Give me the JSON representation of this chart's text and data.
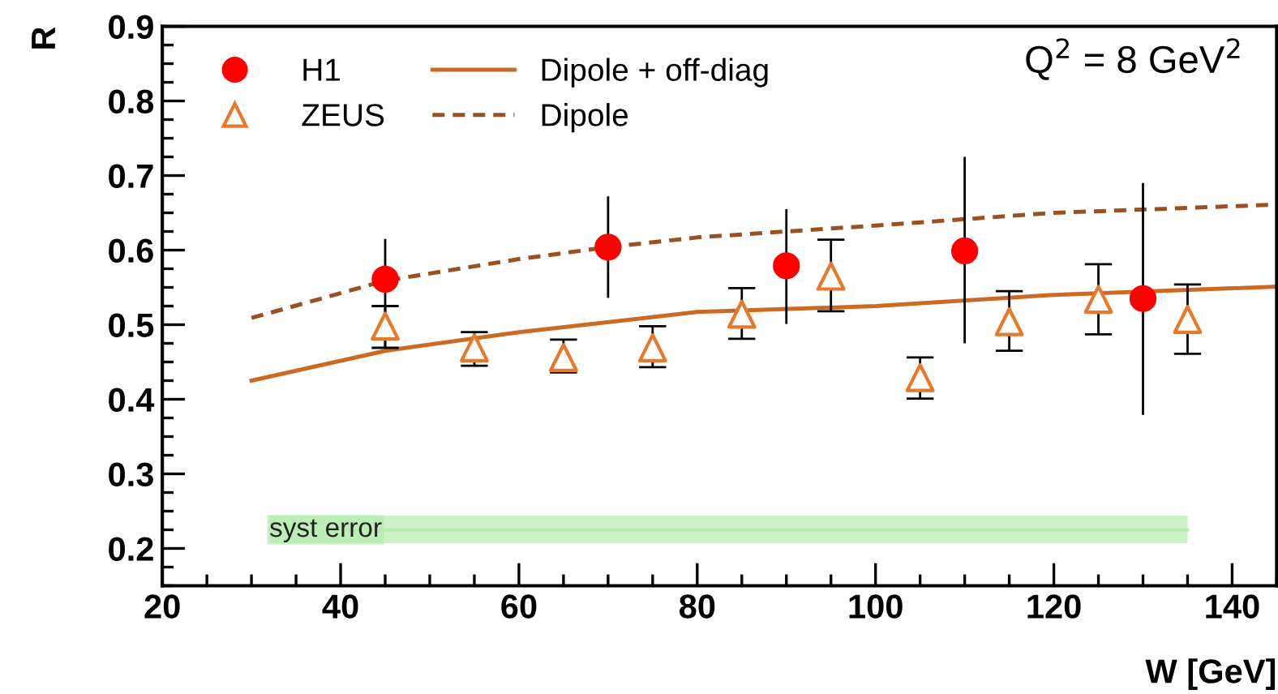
{
  "chart_data": {
    "type": "scatter",
    "xlabel": "W [GeV]",
    "ylabel": "R",
    "annotations": [
      "Q$^{2}$ = 8 GeV$^{2}$"
    ],
    "xlim": [
      20,
      145
    ],
    "xticks": [
      20,
      40,
      60,
      80,
      100,
      120,
      140
    ],
    "ylim": [
      0.15,
      0.9
    ],
    "yticks": [
      0.2,
      0.3,
      0.4,
      0.5,
      0.6,
      0.7,
      0.8,
      0.9
    ],
    "grid": false,
    "legend": "top left",
    "series": [
      {
        "name": "H1",
        "marker": "circle",
        "color": "#ff0000",
        "x": [
          45,
          70,
          90,
          110,
          130
        ],
        "values": [
          0.561,
          0.604,
          0.579,
          0.599,
          0.535
        ],
        "errors": [
          [
            0.47,
            0.615
          ],
          [
            0.536,
            0.672
          ],
          [
            0.501,
            0.655
          ],
          [
            0.475,
            0.725
          ],
          [
            0.379,
            0.69
          ]
        ]
      },
      {
        "name": "ZEUS",
        "marker": "triangle",
        "color": "#e8782a",
        "x": [
          45,
          55,
          65,
          75,
          85,
          95,
          105,
          115,
          125,
          135
        ],
        "values": [
          0.498,
          0.469,
          0.456,
          0.469,
          0.514,
          0.565,
          0.429,
          0.504,
          0.534,
          0.507
        ],
        "errors": [
          [
            0.469,
            0.525
          ],
          [
            0.445,
            0.49
          ],
          [
            0.436,
            0.48
          ],
          [
            0.443,
            0.498
          ],
          [
            0.481,
            0.549
          ],
          [
            0.518,
            0.614
          ],
          [
            0.401,
            0.456
          ],
          [
            0.465,
            0.545
          ],
          [
            0.487,
            0.581
          ],
          [
            0.461,
            0.554
          ]
        ]
      },
      {
        "name": "Dipole + off-diag",
        "type": "line",
        "line_style": "solid",
        "color": "#cc6a22",
        "x": [
          30,
          45,
          60,
          80,
          100,
          120,
          145
        ],
        "values": [
          0.425,
          0.465,
          0.49,
          0.517,
          0.525,
          0.54,
          0.551
        ]
      },
      {
        "name": "Dipole",
        "type": "line",
        "line_style": "dashed",
        "color": "#9a5020",
        "x": [
          30,
          45,
          60,
          70,
          80,
          100,
          120,
          145
        ],
        "values": [
          0.509,
          0.559,
          0.588,
          0.604,
          0.617,
          0.633,
          0.65,
          0.661
        ]
      },
      {
        "name": "syst error",
        "type": "line",
        "color": "#b8ecb0",
        "x": [
          32,
          135
        ],
        "values": [
          0.225,
          0.225
        ],
        "lower": [
          0.207,
          0.207
        ],
        "upper": [
          0.244,
          0.244
        ]
      }
    ]
  }
}
